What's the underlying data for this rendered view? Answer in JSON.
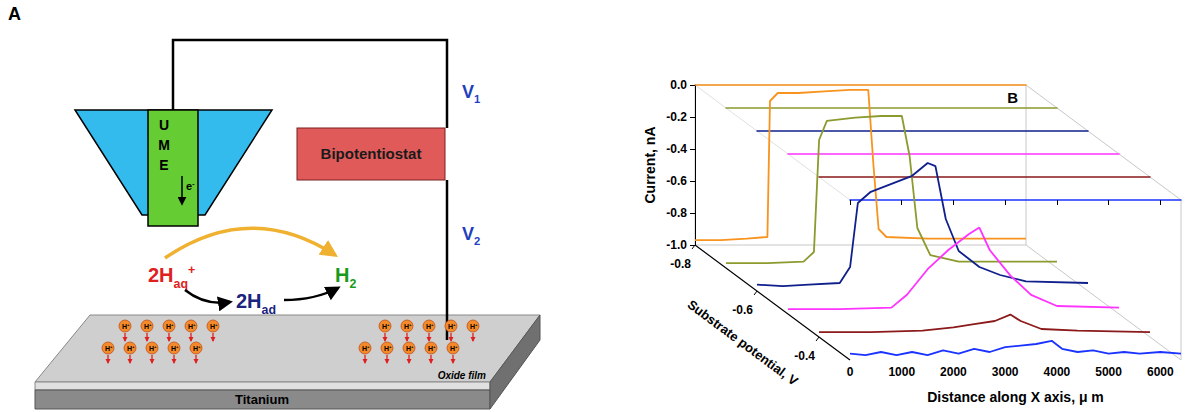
{
  "panel_a": {
    "letter": "A",
    "electrode": "UME",
    "electron": {
      "text": "e",
      "sup": "-"
    },
    "instrument": "Bipotentiostat",
    "potentials": [
      {
        "text": "V",
        "sub": "1"
      },
      {
        "text": "V",
        "sub": "2"
      }
    ],
    "species": {
      "proton": {
        "text": "2H",
        "sub": "aq",
        "sup": "+"
      },
      "adsorbed": {
        "text": "2H",
        "sub": "ad"
      },
      "hydrogen": {
        "text": "H",
        "sub": "2"
      }
    },
    "ion_marker": {
      "text": "H",
      "sup": "+"
    },
    "layers": {
      "oxide": "Oxide film",
      "metal": "Titanium"
    }
  },
  "chart_data": {
    "type": "line",
    "panel": "B",
    "x_label": "Distance along X axis, μ m",
    "y_label": "Current, nA",
    "z_label": "Substrate potential, V",
    "xlim": [
      0,
      6400
    ],
    "xticks": [
      0,
      1000,
      2000,
      3000,
      4000,
      5000,
      6000
    ],
    "ylim": [
      -1.0,
      0.0
    ],
    "yticks": [
      {
        "value": -1.0,
        "label": "-1.0"
      },
      -0.8,
      -0.6,
      -0.4,
      -0.2,
      {
        "value": 0,
        "label": "0.0"
      }
    ],
    "zlim": [
      -0.8,
      -0.3
    ],
    "zticks": [
      -0.8,
      -0.6,
      -0.4
    ],
    "grid": false,
    "series": [
      {
        "color": "#f7931e",
        "z": -0.8,
        "x": [
          0,
          500,
          1000,
          1400,
          1450,
          1600,
          2000,
          2500,
          3000,
          3350,
          3450,
          3550,
          3700,
          4500,
          5500,
          6400
        ],
        "values": [
          -0.97,
          -0.97,
          -0.96,
          -0.95,
          -0.1,
          -0.05,
          -0.05,
          -0.04,
          -0.03,
          -0.03,
          -0.5,
          -0.9,
          -0.95,
          -0.96,
          -0.96,
          -0.96
        ]
      },
      {
        "color": "#8c9a2e",
        "z": -0.7,
        "x": [
          0,
          800,
          1500,
          1700,
          1800,
          1950,
          2500,
          3000,
          3400,
          3550,
          3700,
          3950,
          4500,
          5500,
          6400
        ],
        "values": [
          -0.97,
          -0.97,
          -0.96,
          -0.9,
          -0.2,
          -0.08,
          -0.06,
          -0.05,
          -0.05,
          -0.3,
          -0.75,
          -0.92,
          -0.96,
          -0.96,
          -0.96
        ]
      },
      {
        "color": "#0f1f8c",
        "z": -0.6,
        "x": [
          0,
          500,
          1000,
          1600,
          1800,
          1950,
          2200,
          2600,
          3000,
          3300,
          3450,
          3650,
          3900,
          4300,
          4700,
          5200,
          6400
        ],
        "values": [
          -0.96,
          -0.97,
          -0.96,
          -0.95,
          -0.85,
          -0.45,
          -0.38,
          -0.33,
          -0.28,
          -0.2,
          -0.22,
          -0.55,
          -0.75,
          -0.85,
          -0.9,
          -0.94,
          -0.95
        ]
      },
      {
        "color": "#ff33ff",
        "z": -0.5,
        "x": [
          0,
          1000,
          2000,
          2300,
          2700,
          3100,
          3500,
          3700,
          3900,
          4300,
          4700,
          5200,
          6400
        ],
        "values": [
          -0.97,
          -0.97,
          -0.96,
          -0.88,
          -0.72,
          -0.6,
          -0.5,
          -0.46,
          -0.6,
          -0.76,
          -0.88,
          -0.95,
          -0.96
        ]
      },
      {
        "color": "#8b1a1a",
        "z": -0.4,
        "x": [
          0,
          1000,
          2000,
          2600,
          3000,
          3400,
          3700,
          3900,
          4300,
          5000,
          6400
        ],
        "values": [
          -0.97,
          -0.97,
          -0.96,
          -0.94,
          -0.92,
          -0.9,
          -0.86,
          -0.9,
          -0.95,
          -0.96,
          -0.97
        ]
      },
      {
        "color": "#1a33ff",
        "z": -0.3,
        "x": [
          0,
          300,
          600,
          900,
          1200,
          1500,
          1800,
          2100,
          2400,
          2700,
          3000,
          3300,
          3600,
          3900,
          4100,
          4400,
          4700,
          5000,
          5300,
          5600,
          6000,
          6400
        ],
        "values": [
          -0.96,
          -0.97,
          -0.95,
          -0.97,
          -0.95,
          -0.97,
          -0.94,
          -0.96,
          -0.93,
          -0.95,
          -0.92,
          -0.91,
          -0.9,
          -0.88,
          -0.93,
          -0.95,
          -0.94,
          -0.96,
          -0.95,
          -0.96,
          -0.95,
          -0.96
        ]
      }
    ]
  }
}
